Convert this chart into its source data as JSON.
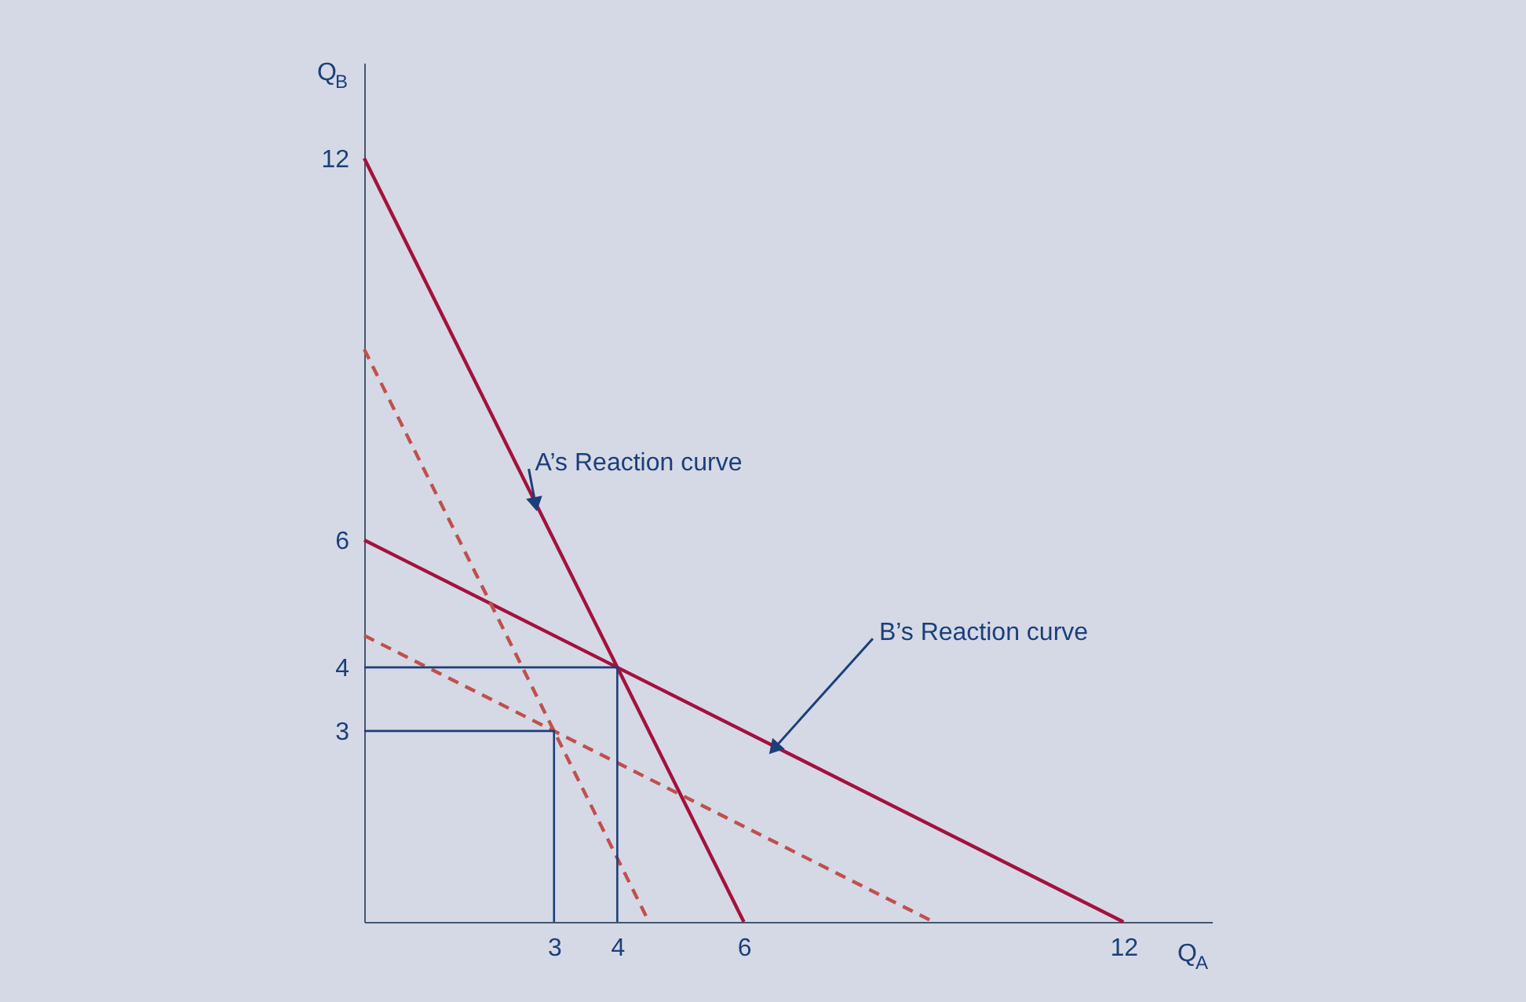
{
  "chart_data": {
    "type": "line",
    "xlabel": "Q$_{A}$",
    "ylabel": "Q$_{B}$",
    "xlim": [
      0,
      13.4
    ],
    "ylim": [
      0,
      13.5
    ],
    "xticks": [
      3,
      4,
      6,
      12
    ],
    "yticks": [
      3,
      4,
      6,
      12
    ],
    "grid": false,
    "legend": false,
    "marker": "none",
    "series": [
      {
        "x": [
          0,
          6
        ],
        "values": [
          12,
          0
        ],
        "color": "#a3123c",
        "line_style": "solid"
      },
      {
        "x": [
          0,
          12
        ],
        "values": [
          6,
          0
        ],
        "color": "#a3123c",
        "line_style": "solid"
      },
      {
        "x": [
          0,
          4.5
        ],
        "values": [
          9,
          0
        ],
        "color": "#c0504d",
        "line_style": "dashed"
      },
      {
        "x": [
          0,
          9
        ],
        "values": [
          4.5,
          0
        ],
        "color": "#c0504d",
        "line_style": "dashed"
      },
      {
        "x": [
          0,
          4,
          4
        ],
        "values": [
          4,
          4,
          0
        ],
        "color": "#1c3f7a",
        "line_style": "solid"
      },
      {
        "x": [
          0,
          3,
          3
        ],
        "values": [
          3,
          3,
          0
        ],
        "color": "#1c3f7a",
        "line_style": "solid"
      }
    ],
    "annotations": [
      {
        "text": "A’s Reaction curve",
        "x": 2.7,
        "y": 6.6
      },
      {
        "text": "B’s Reaction curve",
        "x": 6.5,
        "y": 2.75
      }
    ]
  }
}
